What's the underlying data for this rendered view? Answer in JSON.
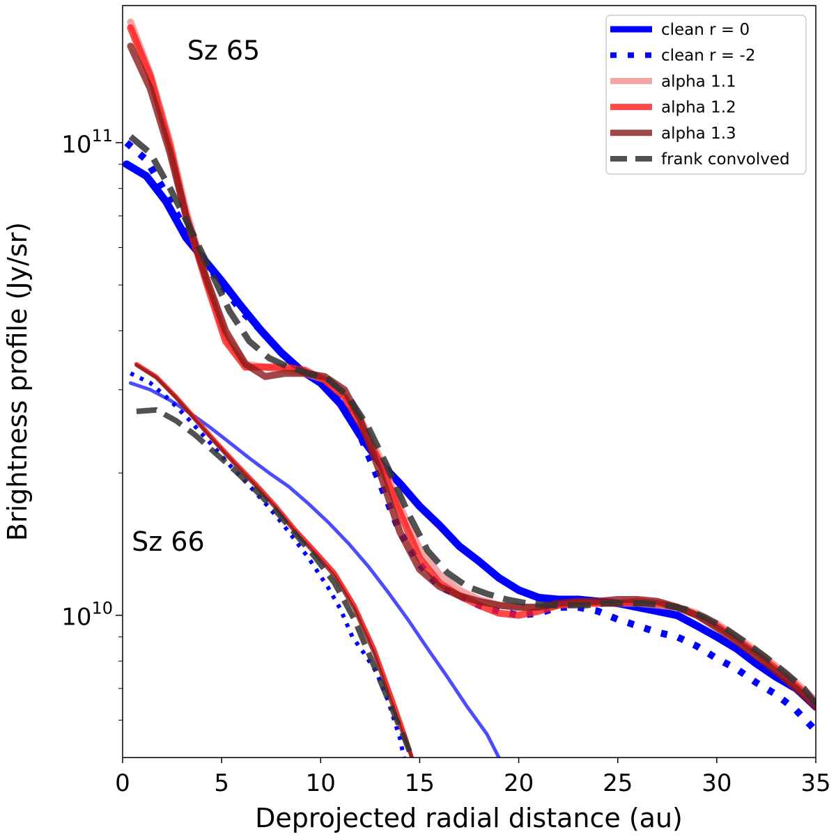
{
  "chart_data": {
    "type": "line",
    "xlabel": "Deprojected radial distance (au)",
    "ylabel": "Brightness profile (Jy/sr)",
    "xlim": [
      0,
      35
    ],
    "ylim": [
      5000000000,
      195000000000
    ],
    "yscale": "log",
    "x_ticks": [
      "0",
      "5",
      "10",
      "15",
      "20",
      "25",
      "30",
      "35"
    ],
    "x_tick_values": [
      0,
      5,
      10,
      15,
      20,
      25,
      30,
      35
    ],
    "y_major_ticks": [
      {
        "base": "10",
        "exp": "10",
        "value": 10000000000
      },
      {
        "base": "10",
        "exp": "11",
        "value": 100000000000
      }
    ],
    "y_minor_tick_values": [
      6000000000,
      7000000000,
      8000000000,
      9000000000,
      20000000000,
      30000000000,
      40000000000,
      50000000000,
      60000000000,
      70000000000,
      80000000000,
      90000000000
    ],
    "annotations": [
      {
        "text": "Sz 65",
        "x": 5.1,
        "y": 150000000000
      },
      {
        "text": "Sz 66",
        "x": 2.3,
        "y": 13700000000
      }
    ],
    "legend_position": "top-right",
    "legend": [
      {
        "label": "clean r = 0",
        "color": "#0000ff",
        "style": "solid-thick",
        "width": 9,
        "opacity": 1
      },
      {
        "label": "clean r = -2",
        "color": "#0000ff",
        "style": "dotted",
        "width": 8,
        "opacity": 1
      },
      {
        "label": "alpha 1.1",
        "color": "#f08080",
        "style": "solid",
        "width": 9,
        "opacity": 0.7
      },
      {
        "label": "alpha 1.2",
        "color": "#ff1a1a",
        "style": "solid",
        "width": 9,
        "opacity": 0.8
      },
      {
        "label": "alpha 1.3",
        "color": "#8b1a1a",
        "style": "solid",
        "width": 9,
        "opacity": 0.8
      },
      {
        "label": "frank convolved",
        "color": "#333333",
        "style": "dashed",
        "width": 8,
        "opacity": 0.85
      }
    ],
    "series": [
      {
        "name": "Sz 65 clean r = 0",
        "color": "#0000ff",
        "style": "solid",
        "width": 11,
        "opacity": 1,
        "x": [
          0.2,
          1.2,
          2.2,
          3.2,
          4.2,
          5.0,
          6.0,
          7.0,
          8.0,
          9.0,
          10.0,
          11.0,
          12.0,
          13.0,
          14.0,
          15.0,
          16.0,
          17.0,
          18.0,
          19.0,
          20.0,
          21.0,
          22.0,
          23.0,
          24.0,
          25.0,
          26.0,
          27.0,
          28.0,
          29.0,
          30.0,
          31.0,
          32.0,
          33.0,
          34.0,
          35.0
        ],
        "y": [
          90000000000,
          85000000000,
          75000000000,
          63000000000,
          56000000000,
          51000000000,
          45000000000,
          40000000000,
          36000000000,
          33000000000,
          31000000000,
          28000000000,
          24000000000,
          21000000000,
          19000000000,
          17000000000,
          15500000000,
          14000000000,
          13000000000,
          12000000000,
          11300000000,
          10900000000,
          10800000000,
          10800000000,
          10700000000,
          10600000000,
          10400000000,
          10200000000,
          10000000000,
          9500000000,
          9000000000,
          8500000000,
          7900000000,
          7400000000,
          7000000000,
          6400000000
        ]
      },
      {
        "name": "Sz 65 clean r = -2",
        "color": "#0000ff",
        "style": "dotted",
        "width": 10,
        "opacity": 1,
        "x": [
          0.2,
          1.2,
          2.2,
          3.2,
          4.2,
          5.0,
          6.0,
          7.0,
          8.0,
          9.0,
          10.0,
          11.0,
          12.0,
          13.0,
          14.0,
          15.0,
          16.0,
          17.0,
          18.0,
          19.0,
          20.0,
          21.0,
          22.0,
          23.0,
          24.0,
          25.0,
          26.0,
          27.0,
          28.0,
          29.0,
          30.0,
          31.0,
          32.0,
          33.0,
          34.0,
          35.0
        ],
        "y": [
          100000000000,
          92000000000,
          78000000000,
          65000000000,
          56000000000,
          50000000000,
          44000000000,
          40000000000,
          36000000000,
          33000000000,
          31000000000,
          28500000000,
          24000000000,
          19000000000,
          15000000000,
          12800000000,
          11500000000,
          11000000000,
          10500000000,
          10200000000,
          10000000000,
          10100000000,
          10400000000,
          10400000000,
          10200000000,
          9800000000,
          9500000000,
          9200000000,
          9000000000,
          8600000000,
          8100000000,
          7700000000,
          7200000000,
          6800000000,
          6300000000,
          5700000000
        ]
      },
      {
        "name": "Sz 65 alpha 1.1",
        "color": "#f08080",
        "style": "solid",
        "width": 10,
        "opacity": 0.7,
        "x": [
          0.4,
          1.4,
          2.4,
          3.2,
          4.2,
          5.2,
          6.2,
          7.2,
          8.2,
          9.2,
          10.2,
          11.2,
          12.0,
          13.0,
          14.0,
          15.0,
          16.0,
          17.0,
          18.0,
          19.0,
          20.0,
          21.0,
          22.0,
          23.0,
          24.0,
          25.0,
          26.0,
          27.0,
          28.0,
          29.0,
          30.0,
          31.0,
          32.0,
          33.0,
          34.0,
          35.0
        ],
        "y": [
          180000000000,
          140000000000,
          100000000000,
          72000000000,
          52000000000,
          39000000000,
          34000000000,
          33500000000,
          33000000000,
          32500000000,
          31500000000,
          29000000000,
          26000000000,
          21500000000,
          17000000000,
          13800000000,
          12200000000,
          11300000000,
          10800000000,
          10500000000,
          10400000000,
          10400000000,
          10500000000,
          10600000000,
          10600000000,
          10600000000,
          10600000000,
          10500000000,
          10400000000,
          10100000000,
          9600000000,
          9000000000,
          8400000000,
          7800000000,
          7200000000,
          6600000000
        ]
      },
      {
        "name": "Sz 65 alpha 1.2",
        "color": "#ff1a1a",
        "style": "solid",
        "width": 10,
        "opacity": 0.8,
        "x": [
          0.4,
          1.4,
          2.4,
          3.2,
          4.2,
          5.2,
          6.2,
          7.2,
          8.2,
          9.2,
          10.2,
          11.2,
          12.0,
          13.0,
          14.0,
          15.0,
          16.0,
          17.0,
          18.0,
          19.0,
          20.0,
          21.0,
          22.0,
          23.0,
          24.0,
          25.0,
          26.0,
          27.0,
          28.0,
          29.0,
          30.0,
          31.0,
          32.0,
          33.0,
          34.0,
          35.0
        ],
        "y": [
          175000000000,
          138000000000,
          98000000000,
          70000000000,
          51000000000,
          38000000000,
          33500000000,
          33500000000,
          33500000000,
          33000000000,
          31500000000,
          29000000000,
          25500000000,
          21000000000,
          16500000000,
          13200000000,
          11700000000,
          11000000000,
          10500000000,
          10100000000,
          10000000000,
          10200000000,
          10500000000,
          10600000000,
          10600000000,
          10600000000,
          10700000000,
          10600000000,
          10400000000,
          10000000000,
          9500000000,
          8900000000,
          8300000000,
          7700000000,
          7100000000,
          6500000000
        ]
      },
      {
        "name": "Sz 65 alpha 1.3",
        "color": "#8b1a1a",
        "style": "solid",
        "width": 10,
        "opacity": 0.8,
        "x": [
          0.4,
          1.4,
          2.4,
          3.2,
          4.2,
          5.2,
          6.2,
          7.2,
          8.2,
          9.2,
          10.2,
          11.2,
          12.0,
          13.0,
          14.0,
          15.0,
          16.0,
          17.0,
          18.0,
          19.0,
          20.0,
          21.0,
          22.0,
          23.0,
          24.0,
          25.0,
          26.0,
          27.0,
          28.0,
          29.0,
          30.0,
          31.0,
          32.0,
          33.0,
          34.0,
          35.0
        ],
        "y": [
          160000000000,
          130000000000,
          95000000000,
          70000000000,
          52000000000,
          40000000000,
          34000000000,
          32000000000,
          32500000000,
          32500000000,
          32000000000,
          30000000000,
          26000000000,
          20000000000,
          15000000000,
          12500000000,
          11500000000,
          11000000000,
          10700000000,
          10500000000,
          10400000000,
          10400000000,
          10600000000,
          10700000000,
          10700000000,
          10800000000,
          10800000000,
          10700000000,
          10400000000,
          10000000000,
          9400000000,
          8800000000,
          8200000000,
          7600000000,
          7000000000,
          6400000000
        ]
      },
      {
        "name": "Sz 65 frank convolved",
        "color": "#333333",
        "style": "dashed",
        "width": 9,
        "opacity": 0.85,
        "x": [
          0.4,
          1.4,
          2.4,
          3.4,
          4.4,
          5.4,
          6.4,
          7.4,
          8.4,
          9.4,
          10.4,
          11.4,
          12.4,
          13.4,
          14.4,
          15.4,
          16.4,
          17.4,
          18.4,
          19.4,
          20.4,
          21.4,
          22.4,
          23.4,
          24.4,
          25.4,
          26.4,
          27.4,
          28.4,
          29.4,
          30.4,
          31.4,
          32.4,
          33.4,
          34.4,
          35.0
        ],
        "y": [
          103000000000,
          95000000000,
          80000000000,
          66000000000,
          54000000000,
          44000000000,
          38000000000,
          35000000000,
          33500000000,
          32500000000,
          31500000000,
          29000000000,
          25000000000,
          20500000000,
          16500000000,
          13700000000,
          12300000000,
          11500000000,
          11100000000,
          10800000000,
          10600000000,
          10500000000,
          10500000000,
          10500000000,
          10600000000,
          10600000000,
          10600000000,
          10500000000,
          10300000000,
          9900000000,
          9400000000,
          8800000000,
          8200000000,
          7600000000,
          7000000000,
          6500000000
        ]
      },
      {
        "name": "Sz 66 clean r = 0",
        "color": "#0000ff",
        "style": "solid",
        "width": 5,
        "opacity": 0.7,
        "x": [
          0.4,
          1.4,
          2.4,
          3.4,
          4.4,
          5.4,
          6.4,
          7.4,
          8.4,
          9.4,
          10.4,
          11.4,
          12.4,
          13.4,
          14.4,
          15.4,
          16.4,
          17.4,
          18.4,
          19.0
        ],
        "y": [
          31000000000,
          30000000000,
          28500000000,
          26800000000,
          25000000000,
          23200000000,
          21500000000,
          20000000000,
          18700000000,
          17200000000,
          15700000000,
          14200000000,
          12700000000,
          11200000000,
          9800000000,
          8500000000,
          7400000000,
          6400000000,
          5600000000,
          5000000000
        ]
      },
      {
        "name": "Sz 66 clean r = -2",
        "color": "#0000ff",
        "style": "dotted",
        "width": 6,
        "opacity": 1,
        "x": [
          0.4,
          1.4,
          2.4,
          3.4,
          4.4,
          5.4,
          6.4,
          7.4,
          8.4,
          9.4,
          10.4,
          11.0,
          11.6,
          12.2,
          12.8,
          13.4,
          14.0,
          14.2
        ],
        "y": [
          32500000000,
          31000000000,
          28500000000,
          25800000000,
          23200000000,
          20800000000,
          18800000000,
          16900000000,
          15000000000,
          13200000000,
          11400000000,
          10300000000,
          9000000000,
          8300000000,
          7600000000,
          6600000000,
          5500000000,
          5000000000
        ]
      },
      {
        "name": "Sz 66 alpha 1.1",
        "color": "#f08080",
        "style": "solid",
        "width": 6,
        "opacity": 0.7,
        "x": [
          0.7,
          1.7,
          2.7,
          3.7,
          4.7,
          5.7,
          6.7,
          7.7,
          8.7,
          9.7,
          10.7,
          11.7,
          12.7,
          13.7,
          14.3,
          14.6
        ],
        "y": [
          34000000000,
          32000000000,
          29000000000,
          26000000000,
          23300000000,
          21000000000,
          19000000000,
          17100000000,
          15200000000,
          13700000000,
          12300000000,
          10500000000,
          8500000000,
          6500000000,
          5500000000,
          5000000000
        ]
      },
      {
        "name": "Sz 66 alpha 1.2",
        "color": "#ff1a1a",
        "style": "solid",
        "width": 6,
        "opacity": 0.8,
        "x": [
          0.7,
          1.7,
          2.7,
          3.7,
          4.7,
          5.7,
          6.7,
          7.7,
          8.7,
          9.7,
          10.7,
          11.7,
          12.7,
          13.7,
          14.3,
          14.6
        ],
        "y": [
          34000000000,
          32000000000,
          29000000000,
          26000000000,
          23300000000,
          21000000000,
          19000000000,
          17100000000,
          15200000000,
          13700000000,
          12300000000,
          10500000000,
          8500000000,
          6500000000,
          5500000000,
          5000000000
        ]
      },
      {
        "name": "Sz 66 alpha 1.3",
        "color": "#8b1a1a",
        "style": "solid",
        "width": 5,
        "opacity": 0.8,
        "x": [
          0.7,
          1.7,
          2.7,
          3.7,
          4.7,
          5.7,
          6.7,
          7.7,
          8.7,
          9.7,
          10.7,
          11.7,
          12.7,
          13.7,
          14.3,
          14.6
        ],
        "y": [
          33800000000,
          31800000000,
          28800000000,
          25800000000,
          23100000000,
          20800000000,
          18800000000,
          16900000000,
          15000000000,
          13500000000,
          12100000000,
          10300000000,
          8300000000,
          6300000000,
          5400000000,
          5000000000
        ]
      },
      {
        "name": "Sz 66 frank convolved",
        "color": "#333333",
        "style": "dashed",
        "width": 8,
        "opacity": 0.85,
        "x": [
          0.7,
          1.7,
          2.7,
          3.7,
          4.7,
          5.7,
          6.7,
          7.7,
          8.7,
          9.7,
          10.7,
          11.7,
          12.7,
          13.7,
          14.3,
          14.6
        ],
        "y": [
          27000000000,
          27200000000,
          25800000000,
          24000000000,
          22000000000,
          20200000000,
          18400000000,
          16700000000,
          14900000000,
          13300000000,
          11700000000,
          9800000000,
          7800000000,
          6200000000,
          5400000000,
          5000000000
        ]
      }
    ]
  }
}
